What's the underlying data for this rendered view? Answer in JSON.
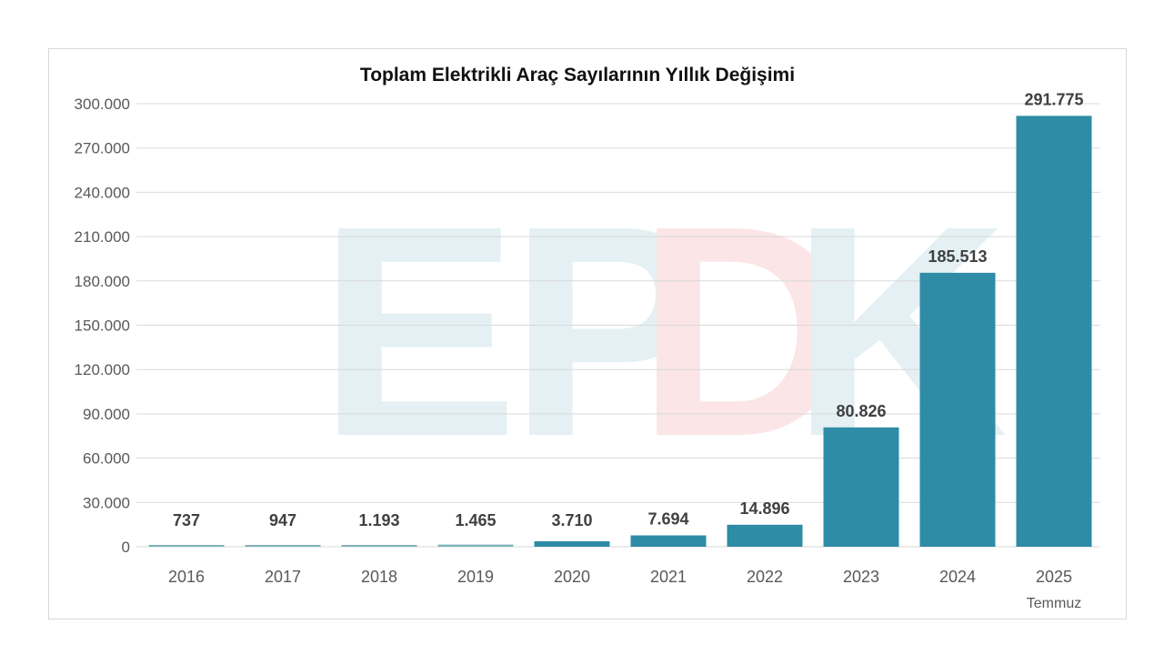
{
  "chart_data": {
    "type": "bar",
    "title": "Toplam Elektrikli Araç Sayılarının Yıllık Değişimi",
    "xlabel": "",
    "ylabel": "",
    "categories": [
      "2016",
      "2017",
      "2018",
      "2019",
      "2020",
      "2021",
      "2022",
      "2023",
      "2024",
      "2025"
    ],
    "category_sublabels": [
      "",
      "",
      "",
      "",
      "",
      "",
      "",
      "",
      "",
      "Temmuz"
    ],
    "values": [
      737,
      947,
      1193,
      1465,
      3710,
      7694,
      14896,
      80826,
      185513,
      291775
    ],
    "data_labels": [
      "737",
      "947",
      "1.193",
      "1.465",
      "3.710",
      "7.694",
      "14.896",
      "80.826",
      "185.513",
      "291.775"
    ],
    "ylim": [
      0,
      300000
    ],
    "yticks": [
      0,
      30000,
      60000,
      90000,
      120000,
      150000,
      180000,
      210000,
      240000,
      270000,
      300000
    ],
    "ytick_labels": [
      "0",
      "30.000",
      "60.000",
      "90.000",
      "120.000",
      "150.000",
      "180.000",
      "210.000",
      "240.000",
      "270.000",
      "300.000"
    ],
    "grid": true,
    "legend": "none",
    "bar_color": "#2e8ca6",
    "small_bar_color": "#7fb3bf",
    "watermark": "EPDK"
  }
}
